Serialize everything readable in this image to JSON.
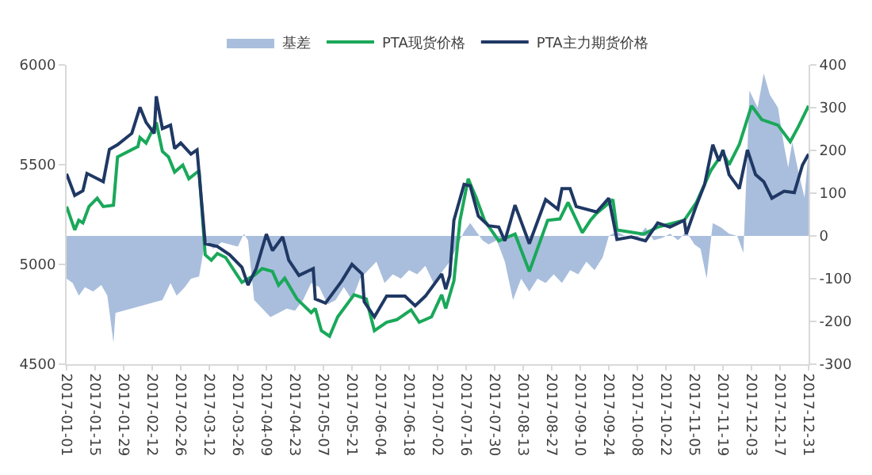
{
  "chart_data": {
    "type": "line",
    "xlim": [
      "2017-01-01",
      "2017-12-31"
    ],
    "xticks": [
      "2017-01-01",
      "2017-01-15",
      "2017-01-29",
      "2017-02-12",
      "2017-02-26",
      "2017-03-12",
      "2017-03-26",
      "2017-04-09",
      "2017-04-23",
      "2017-05-07",
      "2017-05-21",
      "2017-06-04",
      "2017-06-18",
      "2017-07-02",
      "2017-07-16",
      "2017-07-30",
      "2017-08-13",
      "2017-08-27",
      "2017-09-10",
      "2017-09-24",
      "2017-10-08",
      "2017-10-22",
      "2017-11-05",
      "2017-11-19",
      "2017-12-03",
      "2017-12-17",
      "2017-12-31"
    ],
    "ylim": [
      4500,
      6000
    ],
    "yticks": [
      4500,
      5000,
      5500,
      6000
    ],
    "y2lim": [
      -300,
      400
    ],
    "y2ticks": [
      -300,
      -200,
      -100,
      0,
      100,
      200,
      300,
      400
    ],
    "legend": "top",
    "grid": false,
    "series": [
      {
        "name": "基差",
        "type": "area",
        "axis": "y2",
        "color": "#a9bedc",
        "x": [
          "2017-01-01",
          "2017-01-04",
          "2017-01-07",
          "2017-01-10",
          "2017-01-14",
          "2017-01-18",
          "2017-01-21",
          "2017-01-23",
          "2017-01-24",
          "2017-01-25",
          "2017-01-26",
          "2017-02-16",
          "2017-02-17",
          "2017-02-21",
          "2017-02-24",
          "2017-02-28",
          "2017-03-03",
          "2017-03-07",
          "2017-03-10",
          "2017-03-14",
          "2017-03-18",
          "2017-03-22",
          "2017-03-26",
          "2017-03-29",
          "2017-03-31",
          "2017-04-03",
          "2017-04-07",
          "2017-04-11",
          "2017-04-15",
          "2017-04-19",
          "2017-04-23",
          "2017-04-27",
          "2017-05-01",
          "2017-05-05",
          "2017-05-09",
          "2017-05-13",
          "2017-05-17",
          "2017-05-21",
          "2017-05-25",
          "2017-05-27",
          "2017-06-01",
          "2017-06-02",
          "2017-06-06",
          "2017-06-10",
          "2017-06-14",
          "2017-06-18",
          "2017-06-22",
          "2017-06-26",
          "2017-06-30",
          "2017-07-04",
          "2017-07-08",
          "2017-07-12",
          "2017-07-15",
          "2017-07-18",
          "2017-07-21",
          "2017-07-24",
          "2017-07-27",
          "2017-07-31",
          "2017-08-04",
          "2017-08-08",
          "2017-08-12",
          "2017-08-16",
          "2017-08-20",
          "2017-08-24",
          "2017-08-28",
          "2017-09-01",
          "2017-09-05",
          "2017-09-09",
          "2017-09-13",
          "2017-09-17",
          "2017-09-21",
          "2017-09-24",
          "2017-09-28",
          "2017-10-02",
          "2017-10-08",
          "2017-10-12",
          "2017-10-16",
          "2017-10-20",
          "2017-10-24",
          "2017-10-28",
          "2017-11-01",
          "2017-11-05",
          "2017-11-08",
          "2017-11-11",
          "2017-11-14",
          "2017-11-18",
          "2017-11-22",
          "2017-11-26",
          "2017-11-29",
          "2017-12-01",
          "2017-12-02",
          "2017-12-06",
          "2017-12-09",
          "2017-12-12",
          "2017-12-16",
          "2017-12-19",
          "2017-12-21",
          "2017-12-23",
          "2017-12-26",
          "2017-12-29",
          "2017-12-31"
        ],
        "values": [
          -100,
          -110,
          -140,
          -120,
          -130,
          -115,
          -140,
          null,
          -250,
          -180,
          null,
          null,
          -150,
          -110,
          -140,
          -120,
          -100,
          -95,
          -10,
          -30,
          -15,
          -20,
          -25,
          5,
          -10,
          -150,
          -170,
          -190,
          -180,
          -170,
          -175,
          -150,
          -110,
          -120,
          -160,
          -150,
          -120,
          -150,
          -100,
          null,
          null,
          -60,
          -110,
          -90,
          -100,
          -80,
          -90,
          -70,
          -110,
          -85,
          -60,
          -20,
          10,
          30,
          10,
          -10,
          -20,
          -10,
          -60,
          -150,
          -100,
          -130,
          -100,
          -110,
          -90,
          -110,
          -80,
          -90,
          -60,
          -80,
          -50,
          0,
          10,
          0,
          -5,
          20,
          -10,
          -5,
          5,
          -10,
          10,
          -20,
          -30,
          -100,
          30,
          20,
          5,
          0,
          -40,
          200,
          340,
          300,
          380,
          330,
          300,
          210,
          160,
          220,
          150,
          90,
          200
        ]
      },
      {
        "name": "PTA现货价格",
        "color": "#1aa85a",
        "x": [
          "2017-01-01",
          "2017-01-05",
          "2017-01-07",
          "2017-01-09",
          "2017-01-12",
          "2017-01-16",
          "2017-01-19",
          "2017-01-24",
          "2017-01-26",
          "2017-02-05",
          "2017-02-06",
          "2017-02-09",
          "2017-02-14",
          "2017-02-17",
          "2017-02-20",
          "2017-02-23",
          "2017-02-27",
          "2017-03-02",
          "2017-03-07",
          "2017-03-10",
          "2017-03-13",
          "2017-03-16",
          "2017-03-20",
          "2017-03-28",
          "2017-04-03",
          "2017-04-07",
          "2017-04-12",
          "2017-04-15",
          "2017-04-18",
          "2017-04-24",
          "2017-05-01",
          "2017-05-03",
          "2017-05-06",
          "2017-05-10",
          "2017-05-14",
          "2017-05-22",
          "2017-05-28",
          "2017-06-01",
          "2017-06-07",
          "2017-06-12",
          "2017-06-19",
          "2017-06-23",
          "2017-06-29",
          "2017-07-04",
          "2017-07-06",
          "2017-07-10",
          "2017-07-13",
          "2017-07-17",
          "2017-07-21",
          "2017-07-25",
          "2017-08-01",
          "2017-08-09",
          "2017-08-16",
          "2017-08-25",
          "2017-08-31",
          "2017-09-04",
          "2017-09-11",
          "2017-09-15",
          "2017-09-18",
          "2017-09-26",
          "2017-09-28",
          "2017-10-11",
          "2017-10-18",
          "2017-10-31",
          "2017-11-06",
          "2017-11-13",
          "2017-11-19",
          "2017-11-22",
          "2017-11-27",
          "2017-12-03",
          "2017-12-08",
          "2017-12-16",
          "2017-12-22",
          "2017-12-26",
          "2017-12-31"
        ],
        "values": [
          5290,
          5173,
          5221,
          5208,
          5290,
          5332,
          5290,
          5297,
          5539,
          5591,
          5636,
          5608,
          5712,
          5567,
          5539,
          5463,
          5498,
          5429,
          5470,
          5048,
          5021,
          5055,
          5035,
          4910,
          4945,
          4979,
          4965,
          4896,
          4931,
          4827,
          4758,
          4779,
          4668,
          4640,
          4737,
          4848,
          4827,
          4668,
          4710,
          4723,
          4772,
          4710,
          4737,
          4848,
          4779,
          4917,
          5221,
          5429,
          5332,
          5221,
          5118,
          5152,
          4965,
          5221,
          5228,
          5311,
          5159,
          5221,
          5256,
          5325,
          5173,
          5152,
          5187,
          5221,
          5311,
          5470,
          5560,
          5500,
          5601,
          5795,
          5726,
          5698,
          5615,
          5691,
          5795
        ]
      },
      {
        "name": "PTA主力期货价格",
        "color": "#1f3864",
        "x": [
          "2017-01-01",
          "2017-01-05",
          "2017-01-09",
          "2017-01-11",
          "2017-01-19",
          "2017-01-22",
          "2017-01-26",
          "2017-02-02",
          "2017-02-06",
          "2017-02-09",
          "2017-02-13",
          "2017-02-14",
          "2017-02-17",
          "2017-02-21",
          "2017-02-23",
          "2017-02-26",
          "2017-03-03",
          "2017-03-06",
          "2017-03-10",
          "2017-03-16",
          "2017-03-22",
          "2017-03-28",
          "2017-03-31",
          "2017-04-04",
          "2017-04-09",
          "2017-04-12",
          "2017-04-17",
          "2017-04-20",
          "2017-04-25",
          "2017-05-02",
          "2017-05-03",
          "2017-05-08",
          "2017-05-16",
          "2017-05-21",
          "2017-05-26",
          "2017-05-27",
          "2017-06-01",
          "2017-06-07",
          "2017-06-16",
          "2017-06-21",
          "2017-06-26",
          "2017-07-04",
          "2017-07-06",
          "2017-07-08",
          "2017-07-10",
          "2017-07-15",
          "2017-07-18",
          "2017-07-22",
          "2017-07-27",
          "2017-08-01",
          "2017-08-04",
          "2017-08-09",
          "2017-08-16",
          "2017-08-24",
          "2017-08-30",
          "2017-09-01",
          "2017-09-05",
          "2017-09-08",
          "2017-09-18",
          "2017-09-24",
          "2017-09-28",
          "2017-10-05",
          "2017-10-12",
          "2017-10-18",
          "2017-10-24",
          "2017-10-31",
          "2017-11-01",
          "2017-11-06",
          "2017-11-10",
          "2017-11-14",
          "2017-11-17",
          "2017-11-19",
          "2017-11-22",
          "2017-11-27",
          "2017-12-01",
          "2017-12-05",
          "2017-12-09",
          "2017-12-13",
          "2017-12-19",
          "2017-12-24",
          "2017-12-28",
          "2017-12-31"
        ],
        "values": [
          5454,
          5346,
          5369,
          5456,
          5415,
          5576,
          5600,
          5657,
          5788,
          5712,
          5657,
          5843,
          5681,
          5698,
          5581,
          5609,
          5553,
          5574,
          5104,
          5090,
          5048,
          4986,
          4896,
          4979,
          5152,
          5069,
          5138,
          5021,
          4945,
          4979,
          4827,
          4806,
          4917,
          5000,
          4952,
          4813,
          4737,
          4841,
          4841,
          4793,
          4841,
          4952,
          4876,
          4945,
          5221,
          5401,
          5394,
          5242,
          5194,
          5187,
          5118,
          5297,
          5104,
          5325,
          5277,
          5380,
          5380,
          5290,
          5263,
          5332,
          5125,
          5138,
          5118,
          5208,
          5187,
          5221,
          5152,
          5297,
          5401,
          5600,
          5519,
          5574,
          5450,
          5380,
          5574,
          5450,
          5415,
          5332,
          5367,
          5360,
          5498,
          5553
        ]
      }
    ]
  }
}
